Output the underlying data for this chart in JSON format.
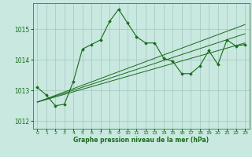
{
  "xlabel": "Graphe pression niveau de la mer (hPa)",
  "bg_color": "#c8e8e0",
  "grid_color": "#a0c8c0",
  "line_color": "#1a6b1a",
  "marker_color": "#1a6b1a",
  "ylim": [
    1011.75,
    1015.85
  ],
  "xlim": [
    -0.5,
    23.5
  ],
  "yticks": [
    1012,
    1013,
    1014,
    1015
  ],
  "xticks": [
    0,
    1,
    2,
    3,
    4,
    5,
    6,
    7,
    8,
    9,
    10,
    11,
    12,
    13,
    14,
    15,
    16,
    17,
    18,
    19,
    20,
    21,
    22,
    23
  ],
  "main_data_x": [
    0,
    1,
    2,
    3,
    4,
    5,
    6,
    7,
    8,
    9,
    10,
    11,
    12,
    13,
    14,
    15,
    16,
    17,
    18,
    19,
    20,
    21,
    22,
    23
  ],
  "main_data_y": [
    1013.1,
    1012.85,
    1012.5,
    1012.55,
    1013.3,
    1014.35,
    1014.5,
    1014.65,
    1015.25,
    1015.65,
    1015.2,
    1014.75,
    1014.55,
    1014.55,
    1014.05,
    1013.95,
    1013.55,
    1013.55,
    1013.8,
    1014.3,
    1013.85,
    1014.65,
    1014.45,
    1014.5
  ],
  "trend_lines": [
    {
      "x": [
        0,
        23
      ],
      "y": [
        1012.62,
        1015.15
      ]
    },
    {
      "x": [
        0,
        23
      ],
      "y": [
        1012.62,
        1014.85
      ]
    },
    {
      "x": [
        0,
        23
      ],
      "y": [
        1012.62,
        1014.55
      ]
    }
  ]
}
